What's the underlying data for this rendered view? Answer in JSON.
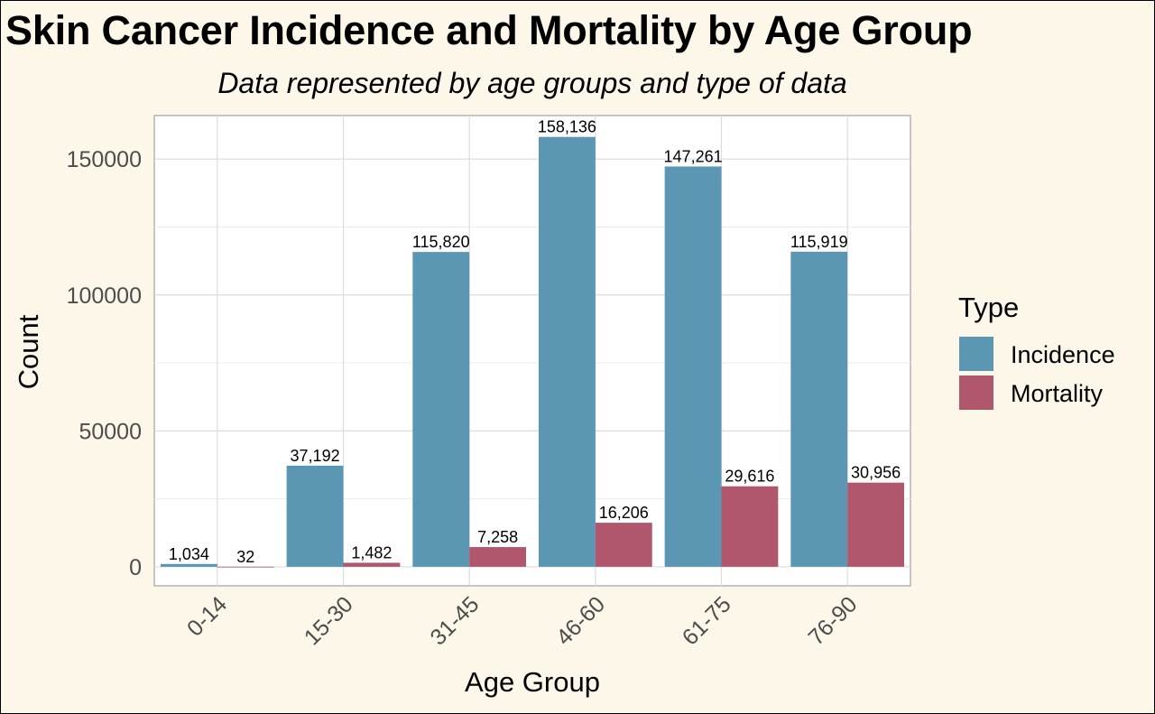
{
  "title": "Skin Cancer Incidence and Mortality by Age Group",
  "subtitle": "Data represented by age groups and type of data",
  "chart_data": {
    "type": "bar",
    "title": "Skin Cancer Incidence and Mortality by Age Group",
    "subtitle": "Data represented by age groups and type of data",
    "xlabel": "Age Group",
    "ylabel": "Count",
    "categories": [
      "0-14",
      "15-30",
      "31-45",
      "46-60",
      "61-75",
      "76-90"
    ],
    "series": [
      {
        "name": "Incidence",
        "color": "#5b97b3",
        "values": [
          1034,
          37192,
          115820,
          158136,
          147261,
          115919
        ],
        "labels": [
          "1,034",
          "37,192",
          "115,820",
          "158,136",
          "147,261",
          "115,919"
        ]
      },
      {
        "name": "Mortality",
        "color": "#b0566d",
        "values": [
          32,
          1482,
          7258,
          16206,
          29616,
          30956
        ],
        "labels": [
          "32",
          "1,482",
          "7,258",
          "16,206",
          "29,616",
          "30,956"
        ]
      }
    ],
    "yticks": [
      0,
      50000,
      100000,
      150000
    ],
    "ylim": [
      -7000,
      166000
    ],
    "grid": true,
    "legend": {
      "title": "Type",
      "position": "right"
    }
  }
}
